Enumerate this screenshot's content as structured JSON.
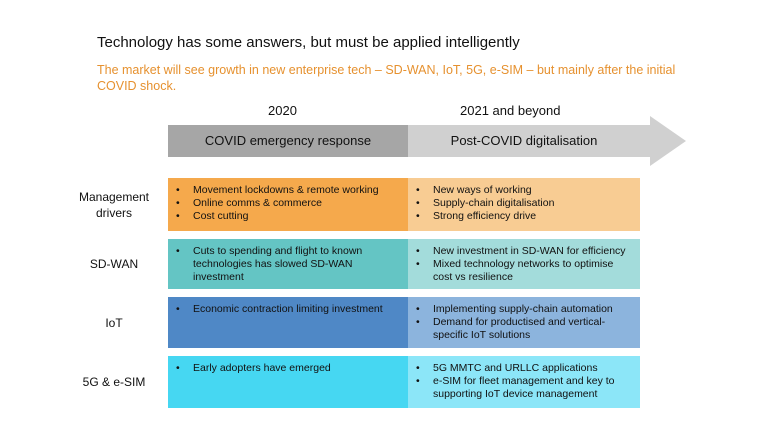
{
  "title": "Technology has some answers, but must be applied intelligently",
  "subtitle": "The market will see growth in new enterprise tech – SD-WAN, IoT, 5G, e-SIM – but mainly after the initial COVID shock.",
  "years": {
    "left": "2020",
    "right": "2021 and beyond"
  },
  "phases": {
    "left": "COVID emergency response",
    "right": "Post-COVID digitalisation"
  },
  "colors": {
    "subtitle": "#e6912f",
    "phase_left": "#a6a6a6",
    "phase_right": "#d0d0d0"
  },
  "rows": [
    {
      "label": "Management drivers",
      "left": [
        "Movement lockdowns & remote working",
        "Online comms & commerce",
        "Cost cutting"
      ],
      "right": [
        "New ways of working",
        "Supply-chain digitalisation",
        "Strong efficiency drive"
      ],
      "left_color": "#f5a94c",
      "right_color": "#f8cc93"
    },
    {
      "label": "SD-WAN",
      "left": [
        "Cuts to spending and flight to known technologies has slowed SD-WAN investment"
      ],
      "right": [
        "New investment in SD-WAN for efficiency",
        "Mixed technology networks to optimise cost vs resilience"
      ],
      "left_color": "#64c5c4",
      "right_color": "#a3dcdb"
    },
    {
      "label": "IoT",
      "left": [
        "Economic contraction limiting investment"
      ],
      "right": [
        "Implementing supply-chain automation",
        "Demand for productised and vertical-specific IoT solutions"
      ],
      "left_color": "#4f88c6",
      "right_color": "#8cb4dd"
    },
    {
      "label": "5G & e-SIM",
      "left": [
        "Early adopters have emerged"
      ],
      "right": [
        "5G MMTC and URLLC applications",
        "e-SIM for fleet management and key to supporting IoT device management"
      ],
      "left_color": "#46d7f2",
      "right_color": "#8ce6f8"
    }
  ]
}
